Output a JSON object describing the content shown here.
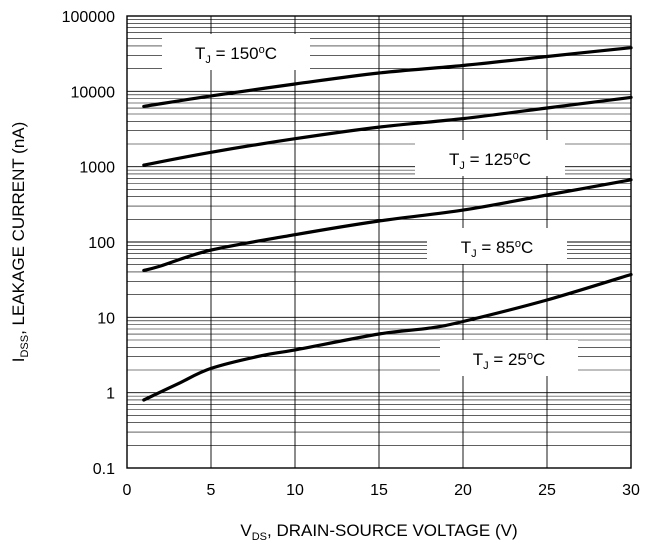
{
  "chart_data": {
    "type": "line",
    "title": "",
    "xlabel": {
      "main": "V",
      "sub": "DS",
      "rest": ", DRAIN-SOURCE VOLTAGE (V)"
    },
    "ylabel": {
      "main": "I",
      "sub": "DSS",
      "rest": ", LEAKAGE CURRENT (nA)"
    },
    "xlim": [
      0,
      30
    ],
    "ylim": [
      0.1,
      100000
    ],
    "yscale": "log",
    "grid": true,
    "x_ticks": [
      0,
      5,
      10,
      15,
      20,
      25,
      30
    ],
    "x_tick_labels": [
      "0",
      "5",
      "10",
      "15",
      "20",
      "25",
      "30"
    ],
    "y_ticks": [
      0.1,
      1,
      10,
      100,
      1000,
      10000,
      100000
    ],
    "y_tick_labels": [
      "0.1",
      "1",
      "10",
      "100",
      "1000",
      "10000",
      "100000"
    ],
    "series": [
      {
        "label": {
          "main": "T",
          "sub": "J",
          "rest": " = 150",
          "sup": "o",
          "unit": "C"
        },
        "x": [
          1,
          5,
          10,
          15,
          20,
          25,
          30
        ],
        "y": [
          6300,
          8700,
          12500,
          17500,
          22000,
          29000,
          38000
        ]
      },
      {
        "label": {
          "main": "T",
          "sub": "J",
          "rest": " = 125",
          "sup": "o",
          "unit": "C"
        },
        "x": [
          1,
          5,
          10,
          15,
          20,
          25,
          30
        ],
        "y": [
          1050,
          1550,
          2350,
          3350,
          4350,
          6000,
          8300
        ]
      },
      {
        "label": {
          "main": "T",
          "sub": "J",
          "rest": " = 85",
          "sup": "o",
          "unit": "C"
        },
        "x": [
          1,
          2,
          5,
          10,
          15,
          20,
          25,
          30
        ],
        "y": [
          42,
          48,
          78,
          125,
          190,
          265,
          420,
          670
        ]
      },
      {
        "label": {
          "main": "T",
          "sub": "J",
          "rest": " = 25",
          "sup": "o",
          "unit": "C"
        },
        "x": [
          1,
          3,
          5,
          8,
          10,
          15,
          18,
          20,
          25,
          30
        ],
        "y": [
          0.8,
          1.3,
          2.1,
          3.1,
          3.7,
          6.0,
          7.2,
          8.8,
          17,
          37
        ]
      }
    ]
  }
}
